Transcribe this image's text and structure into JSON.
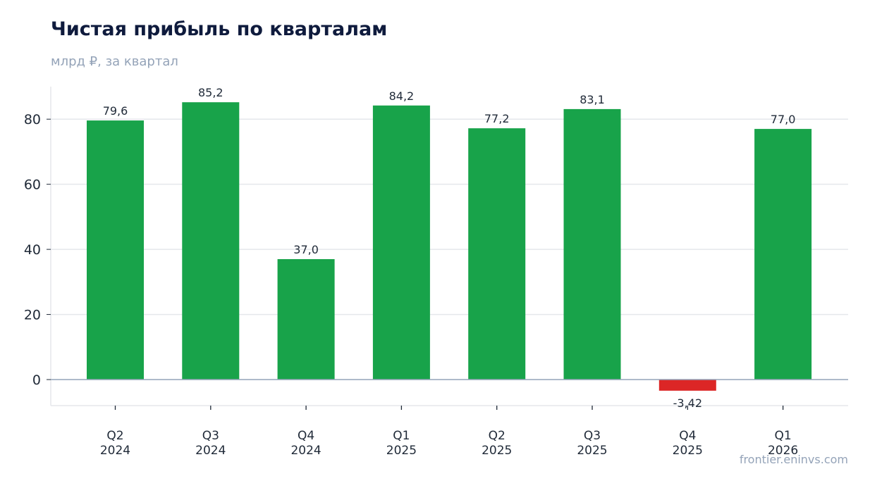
{
  "title": "Чистая прибыль по кварталам",
  "subtitle": "млрд ₽, за квартал",
  "source": "frontier.eninvs.com",
  "colors": {
    "positive": "#18a34a",
    "negative": "#dc2626",
    "grid": "#e5e7eb",
    "zero_line": "#94a3b8",
    "title": "#0f1b3d",
    "muted": "#94a3b8"
  },
  "chart_data": {
    "type": "bar",
    "categories": [
      [
        "Q2",
        "2024"
      ],
      [
        "Q3",
        "2024"
      ],
      [
        "Q4",
        "2024"
      ],
      [
        "Q1",
        "2025"
      ],
      [
        "Q2",
        "2025"
      ],
      [
        "Q3",
        "2025"
      ],
      [
        "Q4",
        "2025"
      ],
      [
        "Q1",
        "2026"
      ]
    ],
    "values": [
      79.6,
      85.2,
      37.0,
      84.2,
      77.2,
      83.1,
      -3.42,
      77.0
    ],
    "data_labels": [
      "79,6",
      "85,2",
      "37,0",
      "84,2",
      "77,2",
      "83,1",
      "-3,42",
      "77,0"
    ],
    "yticks": [
      0,
      20,
      40,
      60,
      80
    ],
    "ylim": [
      -8,
      90
    ],
    "grid": true,
    "legend": "none"
  }
}
